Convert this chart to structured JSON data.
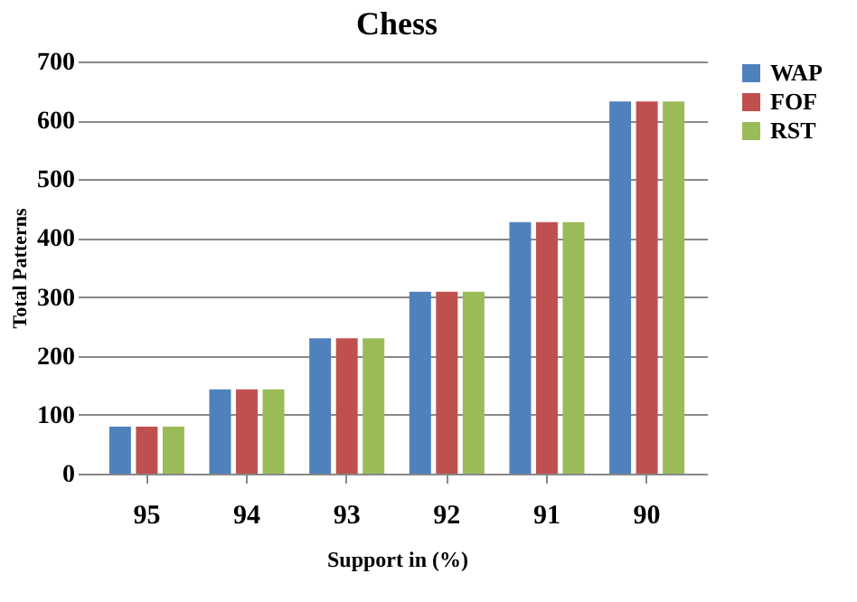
{
  "chart_data": {
    "type": "bar",
    "title": "Chess",
    "xlabel": "Support in (%)",
    "ylabel": "Total  Patterns",
    "categories": [
      "95",
      "94",
      "93",
      "92",
      "91",
      "90"
    ],
    "series": [
      {
        "name": "WAP",
        "color": "#4f81bd",
        "values": [
          80,
          143,
          230,
          309,
          427,
          632
        ]
      },
      {
        "name": "FOF",
        "color": "#c0504d",
        "values": [
          80,
          143,
          230,
          309,
          427,
          632
        ]
      },
      {
        "name": "RST",
        "color": "#9bbb59",
        "values": [
          80,
          143,
          230,
          309,
          427,
          632
        ]
      }
    ],
    "ylim": [
      0,
      700
    ],
    "yticks": [
      0,
      100,
      200,
      300,
      400,
      500,
      600,
      700
    ],
    "grid": "y",
    "legend": "right"
  }
}
